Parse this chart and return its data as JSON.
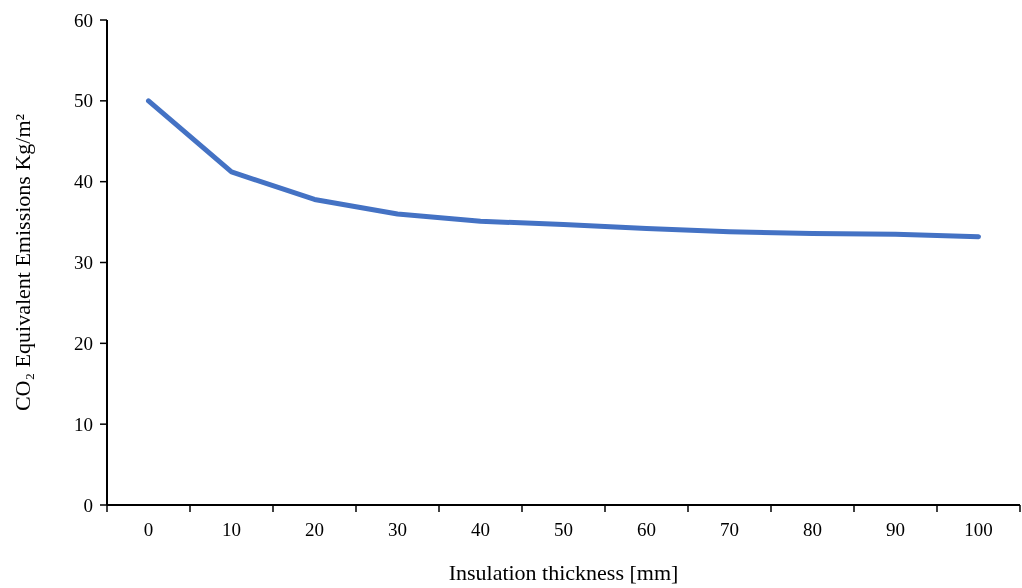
{
  "chart_data": {
    "type": "line",
    "xlabel": "Insulation thickness [mm]",
    "ylabel": "CO₂ Equivalent Emissions Kg/m²",
    "categories": [
      "0",
      "10",
      "20",
      "30",
      "40",
      "50",
      "60",
      "70",
      "80",
      "90",
      "100"
    ],
    "series": [
      {
        "color": "#4472c4",
        "values": [
          50,
          41.2,
          37.8,
          36.0,
          35.1,
          34.7,
          34.2,
          33.8,
          33.6,
          33.5,
          33.2
        ]
      }
    ],
    "ylim": [
      0,
      60
    ],
    "yticks": [
      0,
      10,
      20,
      30,
      40,
      50,
      60
    ],
    "grid": false,
    "marker": "none",
    "line_style": "solid"
  }
}
